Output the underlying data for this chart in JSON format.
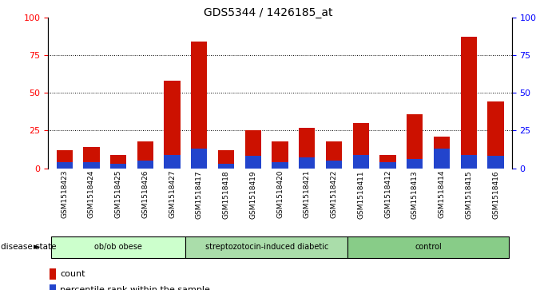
{
  "title": "GDS5344 / 1426185_at",
  "samples": [
    "GSM1518423",
    "GSM1518424",
    "GSM1518425",
    "GSM1518426",
    "GSM1518427",
    "GSM1518417",
    "GSM1518418",
    "GSM1518419",
    "GSM1518420",
    "GSM1518421",
    "GSM1518422",
    "GSM1518411",
    "GSM1518412",
    "GSM1518413",
    "GSM1518414",
    "GSM1518415",
    "GSM1518416"
  ],
  "count_values": [
    12,
    14,
    9,
    18,
    58,
    84,
    12,
    25,
    18,
    27,
    18,
    30,
    9,
    36,
    21,
    87,
    44
  ],
  "percentile_values": [
    4,
    4,
    3,
    5,
    9,
    13,
    3,
    8,
    4,
    7,
    5,
    9,
    4,
    6,
    13,
    9,
    8
  ],
  "groups": [
    {
      "label": "ob/ob obese",
      "start": 0,
      "end": 5
    },
    {
      "label": "streptozotocin-induced diabetic",
      "start": 5,
      "end": 11
    },
    {
      "label": "control",
      "start": 11,
      "end": 17
    }
  ],
  "group_colors": [
    "#ccffcc",
    "#aaddaa",
    "#88cc88"
  ],
  "bar_width": 0.6,
  "ylim": [
    0,
    100
  ],
  "yticks": [
    0,
    25,
    50,
    75,
    100
  ],
  "count_color": "#cc1100",
  "percentile_color": "#2244cc",
  "legend_count": "count",
  "legend_percentile": "percentile rank within the sample",
  "right_ytick_labels": [
    "0",
    "25",
    "50",
    "75",
    "100%"
  ],
  "disease_state_label": "disease state",
  "xtick_bg": "#c8c8c8"
}
